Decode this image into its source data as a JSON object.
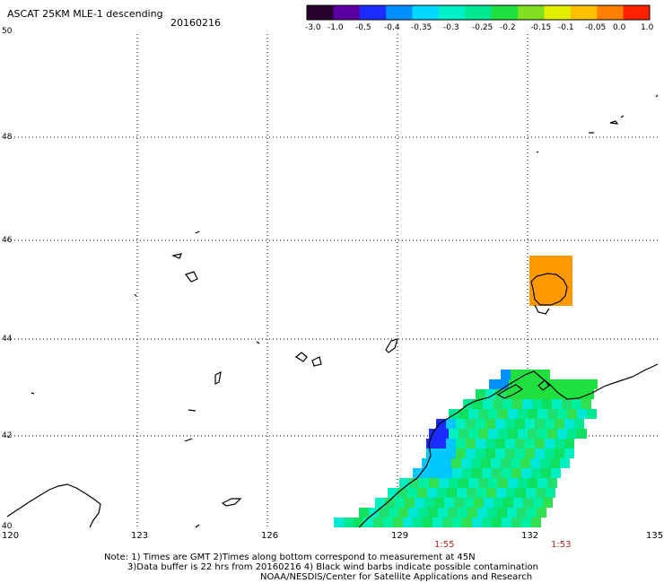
{
  "header": {
    "title": "ASCAT 25KM MLE-1 descending",
    "date": "20160216"
  },
  "colorbar": {
    "labels": [
      "-3.0",
      "-1.0",
      "-0.5",
      "-0.4",
      "-0.35",
      "-0.3",
      "-0.25",
      "-0.2",
      "-0.15",
      "-0.1",
      "-0.05",
      "0.0",
      "1.0"
    ],
    "colors": [
      "#2a0030",
      "#5b00a0",
      "#1c2cff",
      "#0090ff",
      "#00d8ff",
      "#00f0c8",
      "#00e890",
      "#20e040",
      "#80e020",
      "#e0f000",
      "#ffc000",
      "#ff8000",
      "#ff2000"
    ]
  },
  "map": {
    "lat_labels": [
      "50",
      "48",
      "46",
      "44",
      "42",
      "40"
    ],
    "lon_labels": [
      "120",
      "123",
      "126",
      "129",
      "132",
      "135"
    ],
    "lat_range": [
      40,
      50
    ],
    "lon_range": [
      120,
      135
    ],
    "time_labels": [
      "1:55",
      "1:53"
    ],
    "anomaly_color": "#ff9900"
  },
  "notes": {
    "line1": "Note: 1) Times are GMT 2)Times along bottom correspond to measurement at 45N",
    "line2": "3)Data buffer is 22 hrs from 20160216 4) Black wind barbs indicate possible contamination",
    "line3": "NOAA/NESDIS/Center for Satellite Applications and Research"
  }
}
